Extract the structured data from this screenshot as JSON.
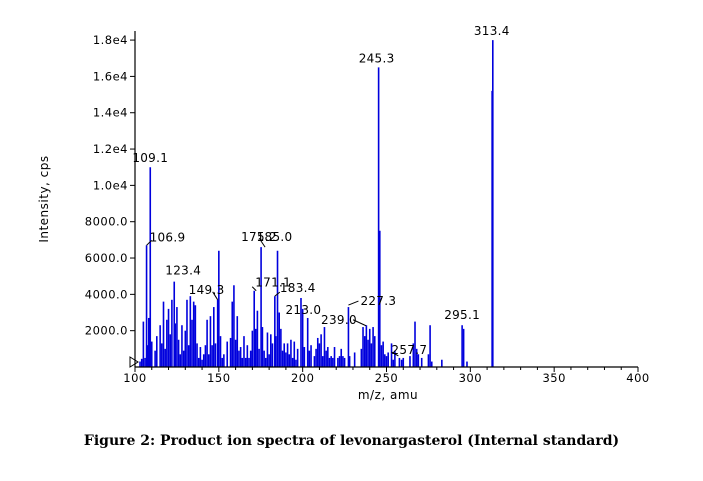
{
  "caption": "Figure 2: Product ion spectra of levonargasterol (Internal standard)",
  "colors": {
    "peak": "#0000dd",
    "axis": "#000000"
  },
  "chart_data": {
    "type": "bar",
    "title": "",
    "xlabel": "m/z, amu",
    "ylabel": "Intensity, cps",
    "xlim": [
      100,
      400
    ],
    "ylim": [
      0,
      18500
    ],
    "xticks": [
      {
        "v": 100,
        "label": "100"
      },
      {
        "v": 150,
        "label": "150"
      },
      {
        "v": 200,
        "label": "200"
      },
      {
        "v": 250,
        "label": "250"
      },
      {
        "v": 300,
        "label": "300"
      },
      {
        "v": 350,
        "label": "350"
      },
      {
        "v": 400,
        "label": "400"
      }
    ],
    "yticks": [
      {
        "v": 2000,
        "label": "2000.0"
      },
      {
        "v": 4000,
        "label": "4000.0"
      },
      {
        "v": 6000,
        "label": "6000.0"
      },
      {
        "v": 8000,
        "label": "8000.0"
      },
      {
        "v": 10000,
        "label": "1.0e4"
      },
      {
        "v": 12000,
        "label": "1.2e4"
      },
      {
        "v": 14000,
        "label": "1.4e4"
      },
      {
        "v": 16000,
        "label": "1.6e4"
      },
      {
        "v": 18000,
        "label": "1.8e4"
      }
    ],
    "grid": false,
    "peaks": [
      [
        103,
        300
      ],
      [
        104,
        450
      ],
      [
        105,
        2500
      ],
      [
        106,
        500
      ],
      [
        106.9,
        6700
      ],
      [
        107.5,
        1200
      ],
      [
        108.2,
        2700
      ],
      [
        109.1,
        11000
      ],
      [
        110,
        1400
      ],
      [
        112,
        900
      ],
      [
        113,
        1700
      ],
      [
        115,
        2300
      ],
      [
        116,
        1300
      ],
      [
        117,
        3600
      ],
      [
        118,
        1000
      ],
      [
        119,
        2600
      ],
      [
        120,
        3200
      ],
      [
        121,
        1800
      ],
      [
        122,
        3700
      ],
      [
        123.4,
        4700
      ],
      [
        124,
        2400
      ],
      [
        125,
        3300
      ],
      [
        126,
        1500
      ],
      [
        127,
        700
      ],
      [
        128,
        2300
      ],
      [
        129,
        900
      ],
      [
        130,
        2000
      ],
      [
        131,
        3700
      ],
      [
        132,
        1200
      ],
      [
        133,
        3900
      ],
      [
        134,
        2600
      ],
      [
        135,
        3600
      ],
      [
        136,
        3400
      ],
      [
        137,
        1300
      ],
      [
        138,
        500
      ],
      [
        139,
        1100
      ],
      [
        140,
        400
      ],
      [
        141,
        700
      ],
      [
        142,
        1200
      ],
      [
        143,
        2600
      ],
      [
        144,
        700
      ],
      [
        145,
        2800
      ],
      [
        146,
        1200
      ],
      [
        147,
        3300
      ],
      [
        148,
        1300
      ],
      [
        149.3,
        3700
      ],
      [
        150,
        6400
      ],
      [
        151,
        1700
      ],
      [
        152,
        500
      ],
      [
        153,
        700
      ],
      [
        155,
        1400
      ],
      [
        157,
        1600
      ],
      [
        158,
        3600
      ],
      [
        159,
        4500
      ],
      [
        160,
        1500
      ],
      [
        161,
        2800
      ],
      [
        162,
        900
      ],
      [
        163,
        1100
      ],
      [
        164,
        500
      ],
      [
        165,
        1700
      ],
      [
        166,
        500
      ],
      [
        167,
        1200
      ],
      [
        168,
        500
      ],
      [
        169,
        900
      ],
      [
        170,
        2000
      ],
      [
        171.1,
        4200
      ],
      [
        172,
        2100
      ],
      [
        173,
        3100
      ],
      [
        174,
        1000
      ],
      [
        175.2,
        6600
      ],
      [
        176,
        2200
      ],
      [
        177,
        900
      ],
      [
        178,
        500
      ],
      [
        179,
        1900
      ],
      [
        180,
        700
      ],
      [
        181,
        1800
      ],
      [
        182,
        1300
      ],
      [
        183.4,
        3900
      ],
      [
        184,
        1700
      ],
      [
        185,
        6400
      ],
      [
        186,
        3000
      ],
      [
        187,
        2100
      ],
      [
        188,
        900
      ],
      [
        189,
        1300
      ],
      [
        190,
        800
      ],
      [
        191,
        1300
      ],
      [
        192,
        700
      ],
      [
        193,
        1500
      ],
      [
        194,
        500
      ],
      [
        195,
        1400
      ],
      [
        196,
        400
      ],
      [
        197,
        1000
      ],
      [
        199,
        3800
      ],
      [
        200,
        3200
      ],
      [
        201,
        1100
      ],
      [
        203,
        2700
      ],
      [
        204,
        900
      ],
      [
        205,
        1200
      ],
      [
        207,
        600
      ],
      [
        208,
        1000
      ],
      [
        209,
        1600
      ],
      [
        210,
        1300
      ],
      [
        211,
        1800
      ],
      [
        212,
        600
      ],
      [
        213,
        2200
      ],
      [
        214,
        900
      ],
      [
        215,
        1100
      ],
      [
        216,
        500
      ],
      [
        217,
        600
      ],
      [
        218,
        500
      ],
      [
        219,
        1100
      ],
      [
        221,
        500
      ],
      [
        222,
        600
      ],
      [
        223,
        1000
      ],
      [
        224,
        600
      ],
      [
        225,
        500
      ],
      [
        227.3,
        3300
      ],
      [
        228,
        600
      ],
      [
        231,
        800
      ],
      [
        235,
        1000
      ],
      [
        236,
        2200
      ],
      [
        237,
        1700
      ],
      [
        238,
        2300
      ],
      [
        239,
        1500
      ],
      [
        240,
        2100
      ],
      [
        241,
        1300
      ],
      [
        242,
        2200
      ],
      [
        243,
        1700
      ],
      [
        245.3,
        16500
      ],
      [
        246,
        7500
      ],
      [
        247,
        1200
      ],
      [
        248,
        1400
      ],
      [
        249,
        700
      ],
      [
        250,
        600
      ],
      [
        251,
        800
      ],
      [
        253,
        1300
      ],
      [
        254,
        400
      ],
      [
        255,
        900
      ],
      [
        257.7,
        500
      ],
      [
        259,
        400
      ],
      [
        260,
        500
      ],
      [
        264,
        600
      ],
      [
        266,
        1300
      ],
      [
        267,
        2500
      ],
      [
        268,
        1000
      ],
      [
        269,
        700
      ],
      [
        271,
        500
      ],
      [
        275,
        700
      ],
      [
        276,
        2300
      ],
      [
        277,
        300
      ],
      [
        283,
        400
      ],
      [
        295.1,
        2300
      ],
      [
        296,
        2100
      ],
      [
        298,
        300
      ],
      [
        313,
        15200
      ],
      [
        313.4,
        18000
      ]
    ],
    "labels": [
      {
        "text": "313.4",
        "x": 313.4,
        "y": 18000
      },
      {
        "text": "245.3",
        "x": 245.3,
        "y": 16500
      },
      {
        "text": "109.1",
        "x": 109.1,
        "y": 11000
      },
      {
        "text": "106.9",
        "x": 106.9,
        "y": 6700
      },
      {
        "text": "175.2",
        "x": 175.2,
        "y": 6600
      },
      {
        "text": "185.0",
        "x": 185.0,
        "y": 6400
      },
      {
        "text": "123.4",
        "x": 123.4,
        "y": 4700
      },
      {
        "text": "171.1",
        "x": 171.1,
        "y": 4200
      },
      {
        "text": "183.4",
        "x": 183.4,
        "y": 3900
      },
      {
        "text": "149.3",
        "x": 149.3,
        "y": 3700
      },
      {
        "text": "227.3",
        "x": 227.3,
        "y": 3300
      },
      {
        "text": "213.0",
        "x": 213.0,
        "y": 2200
      },
      {
        "text": "239.0",
        "x": 239.0,
        "y": 1500
      },
      {
        "text": "257.7",
        "x": 257.7,
        "y": 500
      },
      {
        "text": "295.1",
        "x": 295.1,
        "y": 2300
      }
    ]
  }
}
